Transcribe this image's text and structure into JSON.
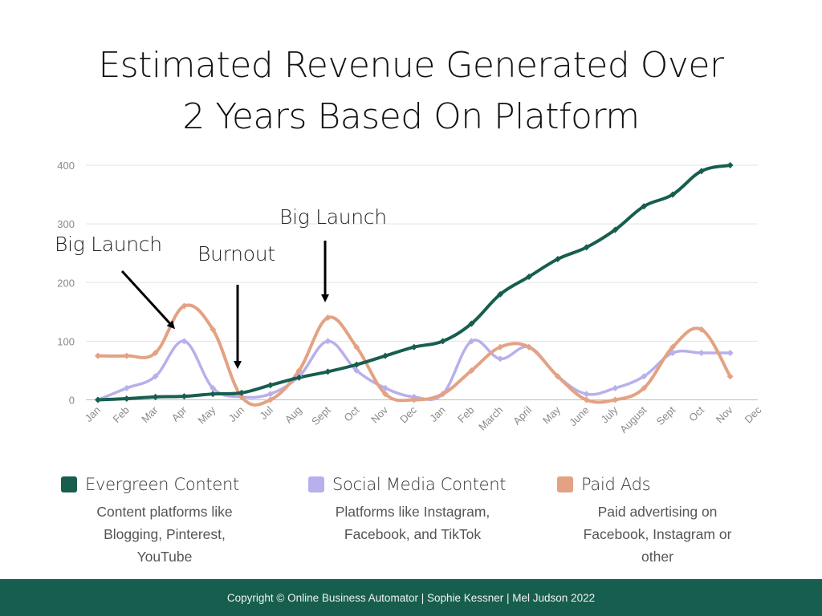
{
  "title_line1": "Estimated Revenue Generated Over",
  "title_line2": "2 Years Based On Platform",
  "annotations": {
    "big_launch_1": "Big Launch",
    "burnout": "Burnout",
    "big_launch_2": "Big Launch"
  },
  "colors": {
    "evergreen": "#175e4f",
    "social": "#b8b0ec",
    "paid": "#e3a283",
    "footer_bg": "#175e4f"
  },
  "chart_data": {
    "type": "line",
    "title": "Estimated Revenue Generated Over 2 Years Based On Platform",
    "xlabel": "",
    "ylabel": "",
    "ylim": [
      0,
      400
    ],
    "yticks": [
      0,
      100,
      200,
      300,
      400
    ],
    "grid": true,
    "legend_position": "bottom",
    "categories": [
      "Jan",
      "Feb",
      "Mar",
      "Apr",
      "May",
      "Jun",
      "Jul",
      "Aug",
      "Sept",
      "Oct",
      "Nov",
      "Dec",
      "Jan",
      "Feb",
      "March",
      "April",
      "May",
      "June",
      "July",
      "August",
      "Sept",
      "Oct",
      "Nov",
      "Dec"
    ],
    "series": [
      {
        "name": "Evergreen Content",
        "values": [
          0,
          2,
          5,
          6,
          10,
          12,
          25,
          38,
          48,
          60,
          75,
          90,
          100,
          130,
          180,
          210,
          240,
          260,
          290,
          330,
          350,
          390,
          400,
          null
        ]
      },
      {
        "name": "Social Media Content",
        "values": [
          0,
          20,
          40,
          100,
          20,
          5,
          10,
          40,
          100,
          50,
          20,
          5,
          10,
          100,
          70,
          90,
          40,
          10,
          20,
          40,
          80,
          80,
          80,
          null
        ]
      },
      {
        "name": "Paid Ads",
        "values": [
          75,
          75,
          80,
          160,
          120,
          5,
          0,
          50,
          140,
          90,
          10,
          0,
          10,
          50,
          90,
          90,
          40,
          0,
          0,
          20,
          90,
          120,
          40,
          null
        ]
      }
    ]
  },
  "legend": [
    {
      "name": "Evergreen Content",
      "desc": [
        "Content platforms like",
        "Blogging, Pinterest,",
        "YouTube"
      ]
    },
    {
      "name": "Social Media Content",
      "desc": [
        "Platforms like Instagram,",
        "Facebook, and TikTok"
      ]
    },
    {
      "name": "Paid Ads",
      "desc": [
        "Paid advertising on",
        "Facebook, Instagram or",
        "other"
      ]
    }
  ],
  "footer": "Copyright © Online Business Automator  | Sophie Kessner | Mel Judson 2022"
}
